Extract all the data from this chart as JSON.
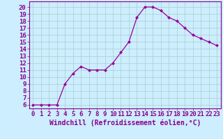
{
  "x": [
    0,
    1,
    2,
    3,
    4,
    5,
    6,
    7,
    8,
    9,
    10,
    11,
    12,
    13,
    14,
    15,
    16,
    17,
    18,
    19,
    20,
    21,
    22,
    23
  ],
  "y": [
    6,
    6,
    6,
    6,
    9,
    10.5,
    11.5,
    11,
    11,
    11,
    12,
    13.5,
    15,
    18.5,
    20,
    20,
    19.5,
    18.5,
    18,
    17,
    16,
    15.5,
    15,
    14.5
  ],
  "line_color": "#990099",
  "marker": "D",
  "marker_size": 2,
  "bg_color": "#cceeff",
  "grid_color": "#aacccc",
  "xlabel": "Windchill (Refroidissement éolien,°C)",
  "ylabel_ticks": [
    6,
    7,
    8,
    9,
    10,
    11,
    12,
    13,
    14,
    15,
    16,
    17,
    18,
    19,
    20
  ],
  "xtick_labels": [
    "0",
    "1",
    "2",
    "3",
    "4",
    "5",
    "6",
    "7",
    "8",
    "9",
    "10",
    "11",
    "12",
    "13",
    "14",
    "15",
    "16",
    "17",
    "18",
    "19",
    "20",
    "21",
    "22",
    "23"
  ],
  "ylim": [
    5.5,
    20.8
  ],
  "xlim": [
    -0.5,
    23.5
  ],
  "tick_color": "#880088",
  "tick_fontsize": 6.5,
  "xlabel_fontsize": 7.0,
  "spine_color": "#880088"
}
